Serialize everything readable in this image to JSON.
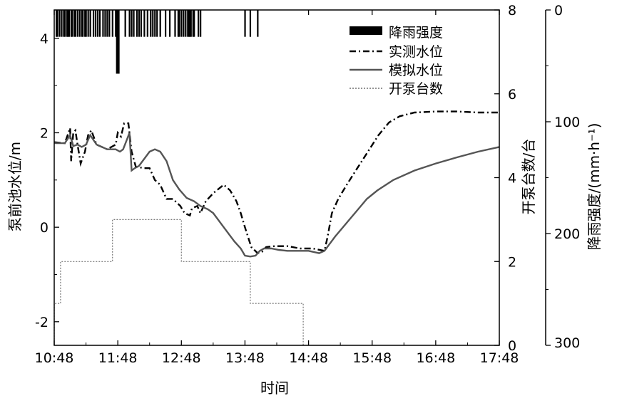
{
  "chart_data": {
    "type": "line",
    "title": "",
    "xlabel": "时间",
    "ylabel_left": "泵前池水位/m",
    "ylabel_right_pumps": "开泵台数/台",
    "ylabel_right_rain": "降雨强度/(mm·h⁻¹)",
    "x_ticks": [
      "10:48",
      "11:48",
      "12:48",
      "13:48",
      "14:48",
      "15:48",
      "16:48",
      "17:48"
    ],
    "y_left_ticks": [
      "-2",
      "0",
      "2",
      "4"
    ],
    "y_pump_ticks": [
      "0",
      "2",
      "4",
      "6",
      "8"
    ],
    "y_rain_ticks": [
      "0",
      "100",
      "200",
      "300"
    ],
    "xlim_minutes_since_1048": [
      0,
      420
    ],
    "ylim_left": [
      -2.5,
      4.6
    ],
    "ylim_pumps": [
      0,
      8
    ],
    "ylim_rain": [
      0,
      300
    ],
    "legend_position": "top-right",
    "legend": [
      "降雨强度",
      "实测水位",
      "模拟水位",
      "开泵台数"
    ],
    "rainfall": {
      "name": "降雨强度",
      "unit": "mm/h",
      "ticks_minutes": [
        2,
        3,
        5,
        7,
        9,
        10,
        12,
        13,
        14,
        16,
        17,
        19,
        20,
        22,
        24,
        26,
        27,
        29,
        30,
        32,
        34,
        37,
        39,
        41,
        43,
        46,
        48,
        50,
        52,
        55,
        58,
        60,
        67,
        71,
        73,
        75,
        78,
        80,
        82,
        85,
        88,
        91,
        93,
        95,
        97,
        100,
        105,
        109,
        114,
        117,
        118,
        120,
        122,
        124,
        126,
        127,
        128,
        129,
        131,
        132,
        136,
        138,
        180,
        185,
        192
      ],
      "tick_intensity": 24,
      "peak": {
        "minute": 60,
        "intensity": 57
      }
    },
    "series": [
      {
        "name": "实测水位",
        "style": "dash-dot",
        "points": [
          [
            0,
            1.8
          ],
          [
            10,
            1.78
          ],
          [
            15,
            2.1
          ],
          [
            16,
            1.4
          ],
          [
            18,
            2.0
          ],
          [
            20,
            2.05
          ],
          [
            22,
            1.75
          ],
          [
            25,
            1.35
          ],
          [
            29,
            1.6
          ],
          [
            32,
            1.95
          ],
          [
            35,
            2.05
          ],
          [
            40,
            1.75
          ],
          [
            50,
            1.65
          ],
          [
            58,
            1.75
          ],
          [
            60,
            2.0
          ],
          [
            63,
            1.92
          ],
          [
            66,
            2.2
          ],
          [
            70,
            2.2
          ],
          [
            73,
            1.6
          ],
          [
            77,
            1.28
          ],
          [
            85,
            1.25
          ],
          [
            90,
            1.25
          ],
          [
            95,
            1.0
          ],
          [
            100,
            0.9
          ],
          [
            106,
            0.6
          ],
          [
            112,
            0.6
          ],
          [
            119,
            0.45
          ],
          [
            123,
            0.3
          ],
          [
            128,
            0.25
          ],
          [
            130,
            0.4
          ],
          [
            135,
            0.45
          ],
          [
            138,
            0.3
          ],
          [
            143,
            0.55
          ],
          [
            150,
            0.72
          ],
          [
            160,
            0.9
          ],
          [
            166,
            0.78
          ],
          [
            172,
            0.55
          ],
          [
            176,
            0.3
          ],
          [
            180,
            0.0
          ],
          [
            186,
            -0.42
          ],
          [
            192,
            -0.55
          ],
          [
            196,
            -0.52
          ],
          [
            200,
            -0.42
          ],
          [
            208,
            -0.4
          ],
          [
            220,
            -0.4
          ],
          [
            232,
            -0.45
          ],
          [
            244,
            -0.45
          ],
          [
            255,
            -0.5
          ],
          [
            258,
            -0.2
          ],
          [
            262,
            0.3
          ],
          [
            268,
            0.6
          ],
          [
            276,
            0.9
          ],
          [
            286,
            1.25
          ],
          [
            296,
            1.6
          ],
          [
            306,
            1.95
          ],
          [
            316,
            2.22
          ],
          [
            326,
            2.35
          ],
          [
            340,
            2.43
          ],
          [
            360,
            2.45
          ],
          [
            380,
            2.45
          ],
          [
            400,
            2.43
          ],
          [
            420,
            2.43
          ]
        ]
      },
      {
        "name": "模拟水位",
        "style": "solid",
        "points": [
          [
            0,
            1.78
          ],
          [
            10,
            1.78
          ],
          [
            15,
            1.95
          ],
          [
            18,
            1.72
          ],
          [
            22,
            1.75
          ],
          [
            26,
            1.7
          ],
          [
            30,
            1.75
          ],
          [
            34,
            1.95
          ],
          [
            40,
            1.75
          ],
          [
            50,
            1.65
          ],
          [
            58,
            1.65
          ],
          [
            62,
            1.6
          ],
          [
            65,
            1.65
          ],
          [
            68,
            1.82
          ],
          [
            71,
            2.0
          ],
          [
            73,
            1.2
          ],
          [
            76,
            1.25
          ],
          [
            80,
            1.3
          ],
          [
            85,
            1.45
          ],
          [
            90,
            1.6
          ],
          [
            95,
            1.65
          ],
          [
            100,
            1.6
          ],
          [
            106,
            1.4
          ],
          [
            112,
            1.0
          ],
          [
            118,
            0.8
          ],
          [
            125,
            0.62
          ],
          [
            132,
            0.55
          ],
          [
            138,
            0.45
          ],
          [
            145,
            0.38
          ],
          [
            150,
            0.3
          ],
          [
            160,
            0.0
          ],
          [
            170,
            -0.3
          ],
          [
            176,
            -0.45
          ],
          [
            180,
            -0.6
          ],
          [
            185,
            -0.62
          ],
          [
            190,
            -0.6
          ],
          [
            194,
            -0.5
          ],
          [
            198,
            -0.45
          ],
          [
            205,
            -0.45
          ],
          [
            212,
            -0.48
          ],
          [
            220,
            -0.5
          ],
          [
            230,
            -0.5
          ],
          [
            240,
            -0.5
          ],
          [
            250,
            -0.55
          ],
          [
            255,
            -0.5
          ],
          [
            265,
            -0.2
          ],
          [
            280,
            0.2
          ],
          [
            295,
            0.6
          ],
          [
            305,
            0.78
          ],
          [
            320,
            1.0
          ],
          [
            340,
            1.2
          ],
          [
            360,
            1.35
          ],
          [
            380,
            1.48
          ],
          [
            400,
            1.6
          ],
          [
            420,
            1.7
          ]
        ]
      },
      {
        "name": "开泵台数",
        "style": "dotted",
        "points": [
          [
            0,
            0
          ],
          [
            0,
            1
          ],
          [
            6,
            1
          ],
          [
            6,
            2
          ],
          [
            55,
            2
          ],
          [
            55,
            3
          ],
          [
            120,
            3
          ],
          [
            120,
            2
          ],
          [
            185,
            2
          ],
          [
            185,
            1
          ],
          [
            235,
            1
          ],
          [
            235,
            0
          ]
        ]
      }
    ]
  }
}
